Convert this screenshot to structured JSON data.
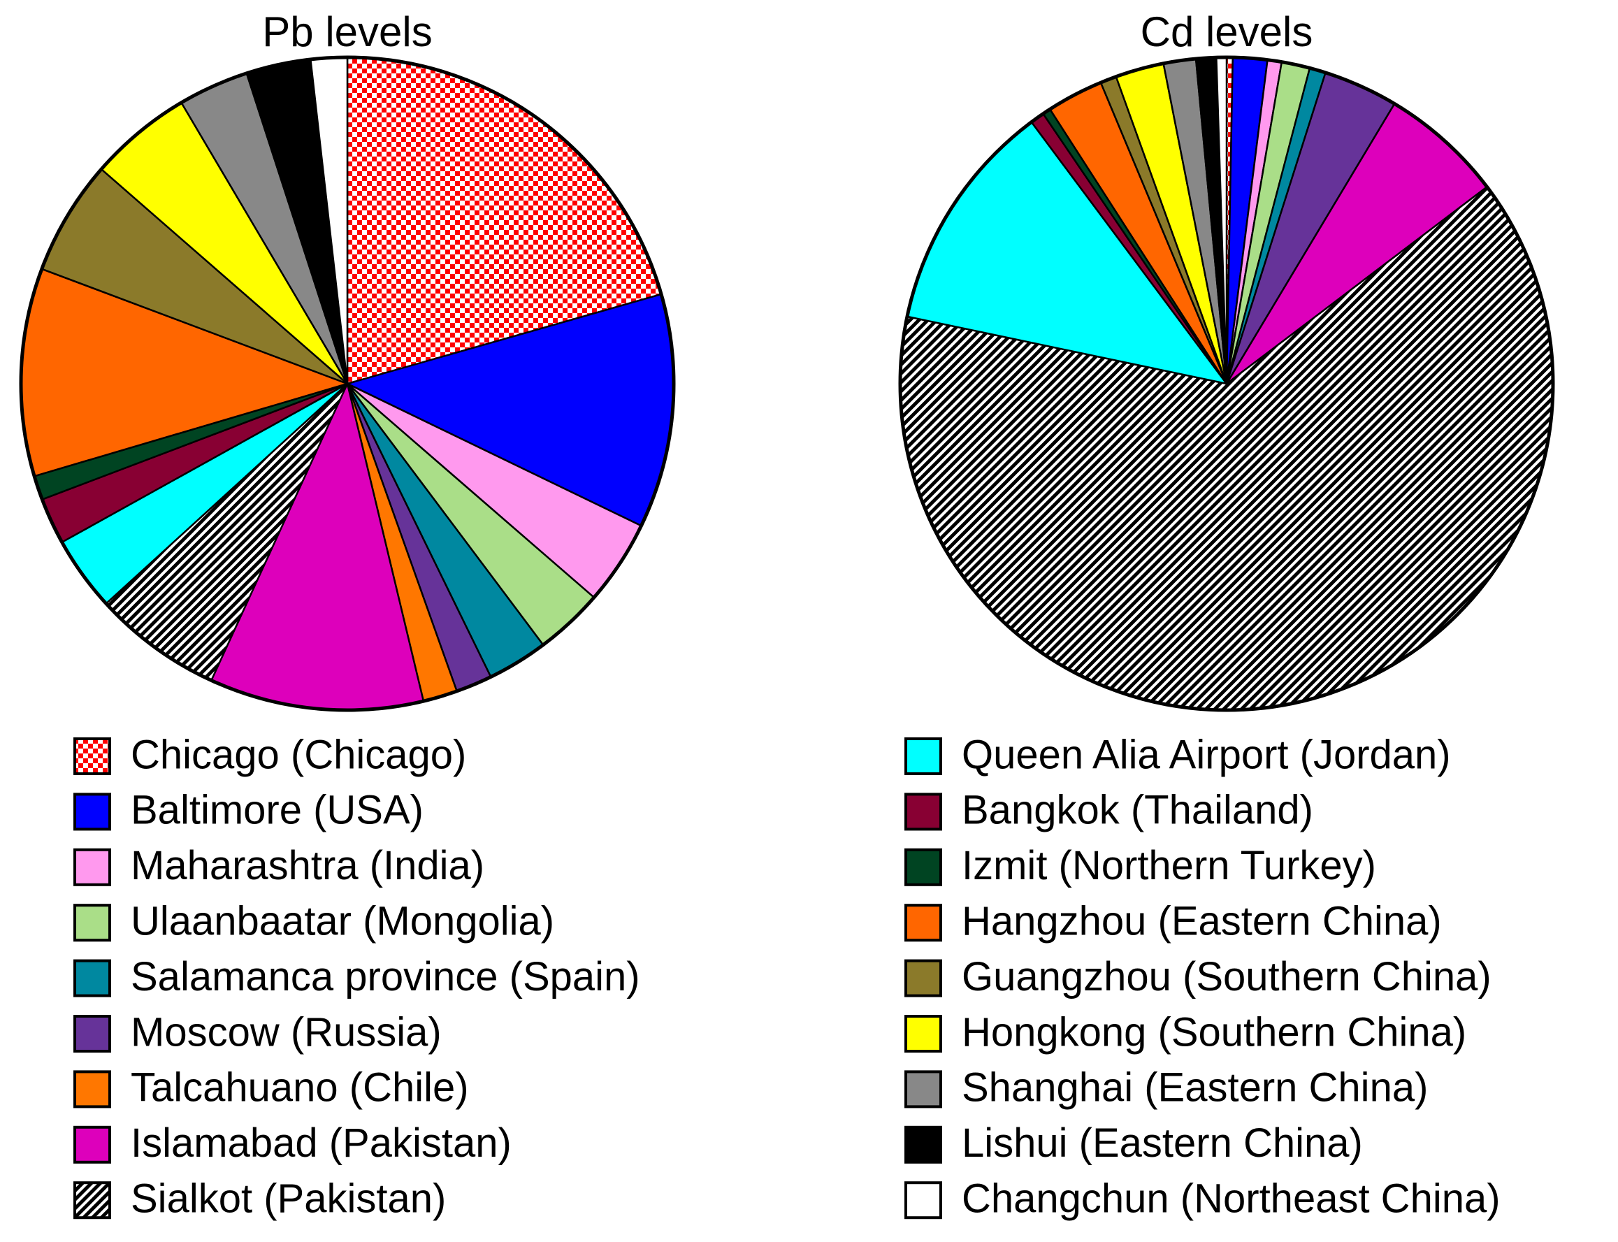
{
  "legend": {
    "columns": 2,
    "items": [
      {
        "name": "Chicago (Chicago)",
        "color": "#ff0000",
        "pattern": "checker"
      },
      {
        "name": "Baltimore (USA)",
        "color": "#0000ff"
      },
      {
        "name": "Maharashtra (India)",
        "color": "#ff99ee"
      },
      {
        "name": "Ulaanbaatar (Mongolia)",
        "color": "#aade88"
      },
      {
        "name": "Salamanca province (Spain)",
        "color": "#0088a0"
      },
      {
        "name": "Moscow (Russia)",
        "color": "#663399"
      },
      {
        "name": "Talcahuano (Chile)",
        "color": "#ff7700"
      },
      {
        "name": "Islamabad (Pakistan)",
        "color": "#dd00bb"
      },
      {
        "name": "Sialkot (Pakistan)",
        "color": "#000000",
        "pattern": "hatch"
      },
      {
        "name": "Queen Alia Airport (Jordan)",
        "color": "#00ffff"
      },
      {
        "name": "Bangkok (Thailand)",
        "color": "#880033"
      },
      {
        "name": "Izmit (Northern Turkey)",
        "color": "#004422"
      },
      {
        "name": "Hangzhou (Eastern China)",
        "color": "#ff6600"
      },
      {
        "name": "Guangzhou (Southern China)",
        "color": "#8b7a2a"
      },
      {
        "name": "Hongkong (Southern China)",
        "color": "#ffff00"
      },
      {
        "name": "Shanghai (Eastern China)",
        "color": "#888888"
      },
      {
        "name": "Lishui (Eastern China)",
        "color": "#000000"
      },
      {
        "name": "Changchun (Northeast China)",
        "color": "#ffffff"
      }
    ]
  },
  "chart_data": [
    {
      "type": "pie",
      "title": "Pb levels",
      "values": [
        20.6,
        11.6,
        4.2,
        3.4,
        3.0,
        1.8,
        1.7,
        10.6,
        6.4,
        3.7,
        2.3,
        1.2,
        10.3,
        5.7,
        5.1,
        3.5,
        3.2,
        1.8
      ]
    },
    {
      "type": "pie",
      "title": "Cd levels",
      "values": [
        0.3,
        1.7,
        0.7,
        1.4,
        0.8,
        3.7,
        0,
        6.1,
        63.6,
        11.5,
        0.7,
        0.4,
        2.8,
        0.8,
        2.4,
        1.6,
        1.0,
        0.5
      ]
    }
  ]
}
